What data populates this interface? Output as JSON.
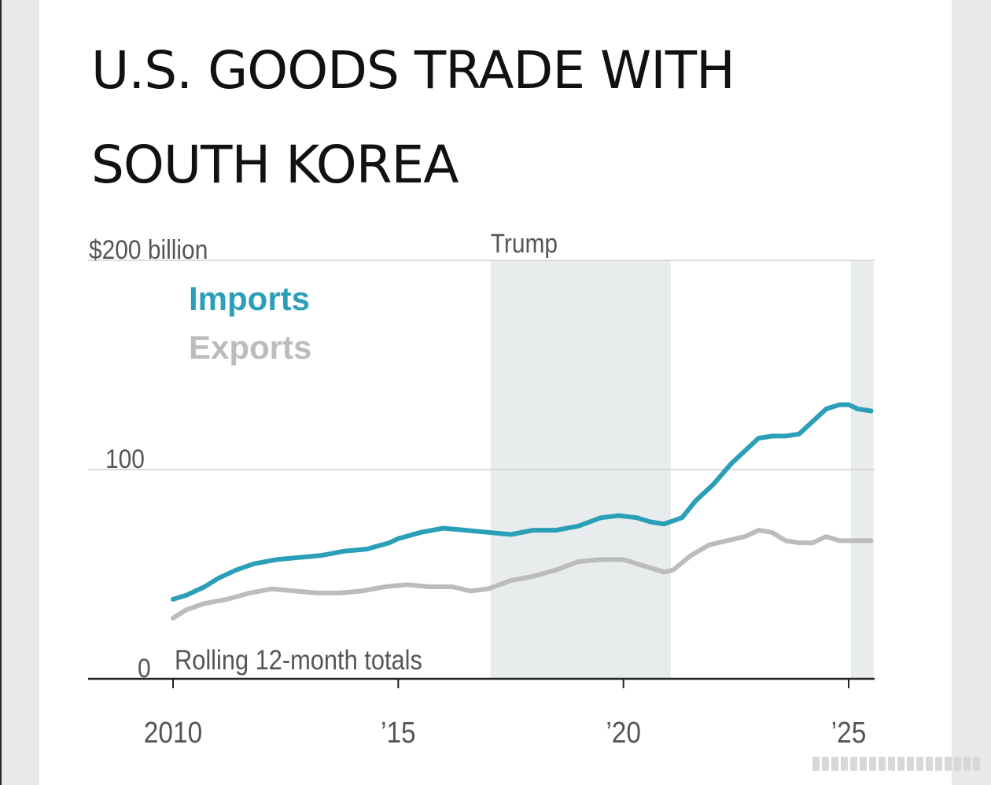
{
  "title_line1": "U.S. GOODS TRADE WITH",
  "title_line2": "SOUTH KOREA",
  "chart_data": {
    "type": "line",
    "title": "U.S. GOODS TRADE WITH SOUTH KOREA",
    "subtitle": "Rolling 12-month totals",
    "unit_label": "$200 billion",
    "ylim": [
      0,
      200
    ],
    "xlim": [
      2008.15,
      2025.55
    ],
    "y_ticks": [
      {
        "value": 0,
        "label": "0"
      },
      {
        "value": 100,
        "label": "100"
      },
      {
        "value": 200,
        "label": "$200 billion"
      }
    ],
    "x_ticks": [
      {
        "value": 2010,
        "label": "2010"
      },
      {
        "value": 2015,
        "label": "’15"
      },
      {
        "value": 2020,
        "label": "’20"
      },
      {
        "value": 2025,
        "label": "’25"
      }
    ],
    "shaded_periods": [
      {
        "start": 2017.05,
        "end": 2021.05,
        "label": "Trump"
      },
      {
        "start": 2025.05,
        "end": 2025.55,
        "label": ""
      }
    ],
    "series": [
      {
        "name": "Imports",
        "color": "#2b9fb8",
        "x": [
          2010.0,
          2010.3,
          2010.7,
          2011.0,
          2011.4,
          2011.8,
          2012.3,
          2012.8,
          2013.3,
          2013.8,
          2014.3,
          2014.8,
          2015.0,
          2015.5,
          2016.0,
          2016.5,
          2017.0,
          2017.5,
          2018.0,
          2018.5,
          2019.0,
          2019.5,
          2019.9,
          2020.3,
          2020.6,
          2020.9,
          2021.3,
          2021.6,
          2022.0,
          2022.4,
          2022.7,
          2023.0,
          2023.3,
          2023.6,
          2023.9,
          2024.2,
          2024.5,
          2024.8,
          2025.0,
          2025.2,
          2025.5
        ],
        "y": [
          38,
          40,
          44,
          48,
          52,
          55,
          57,
          58,
          59,
          61,
          62,
          65,
          67,
          70,
          72,
          71,
          70,
          69,
          71,
          71,
          73,
          77,
          78,
          77,
          75,
          74,
          77,
          85,
          93,
          103,
          109,
          115,
          116,
          116,
          117,
          123,
          129,
          131,
          131,
          129,
          128
        ]
      },
      {
        "name": "Exports",
        "color": "#bcbcbc",
        "x": [
          2010.0,
          2010.3,
          2010.7,
          2011.2,
          2011.7,
          2012.2,
          2012.7,
          2013.2,
          2013.7,
          2014.2,
          2014.7,
          2015.2,
          2015.7,
          2016.2,
          2016.6,
          2017.0,
          2017.5,
          2018.0,
          2018.5,
          2019.0,
          2019.5,
          2020.0,
          2020.3,
          2020.6,
          2020.9,
          2021.1,
          2021.5,
          2021.9,
          2022.3,
          2022.7,
          2023.0,
          2023.3,
          2023.6,
          2023.9,
          2024.2,
          2024.5,
          2024.8,
          2025.1,
          2025.5
        ],
        "y": [
          29,
          33,
          36,
          38,
          41,
          43,
          42,
          41,
          41,
          42,
          44,
          45,
          44,
          44,
          42,
          43,
          47,
          49,
          52,
          56,
          57,
          57,
          55,
          53,
          51,
          52,
          59,
          64,
          66,
          68,
          71,
          70,
          66,
          65,
          65,
          68,
          66,
          66,
          66
        ]
      }
    ]
  }
}
